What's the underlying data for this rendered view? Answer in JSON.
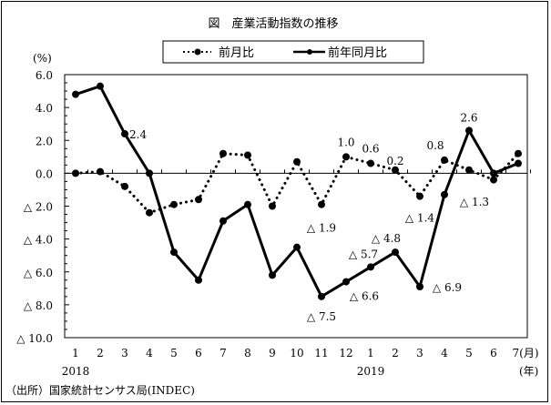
{
  "chart_data": {
    "type": "line",
    "title": "図　産業活動指数の推移",
    "ylabel": "(%)",
    "xlabel": "(年)",
    "x_unit": "(月)",
    "ylim": [
      -10,
      6
    ],
    "y_ticks": [
      6,
      4,
      2,
      0,
      -2,
      -4,
      -6,
      -8,
      -10
    ],
    "y_tick_labels": [
      "6.0",
      "4.0",
      "2.0",
      "0.0",
      "△ 2.0",
      "△ 4.0",
      "△ 6.0",
      "△ 8.0",
      "△ 10.0"
    ],
    "categories": [
      "1",
      "2",
      "3",
      "4",
      "5",
      "6",
      "7",
      "8",
      "9",
      "10",
      "11",
      "12",
      "1",
      "2",
      "3",
      "4",
      "5",
      "6",
      "7(月)"
    ],
    "years": [
      {
        "label": "2018",
        "index": 0
      },
      {
        "label": "2019",
        "index": 12
      }
    ],
    "grid": false,
    "legend_position": "top",
    "series": [
      {
        "name": "前月比",
        "style": "dotted",
        "values": [
          0.0,
          0.1,
          -0.8,
          -2.4,
          -1.9,
          -1.6,
          1.2,
          1.1,
          -2.0,
          0.7,
          -1.9,
          1.0,
          0.6,
          0.2,
          -1.4,
          0.8,
          0.2,
          -0.4,
          1.2
        ]
      },
      {
        "name": "前年同月比",
        "style": "solid",
        "values": [
          4.8,
          5.3,
          2.4,
          0.0,
          -4.8,
          -6.5,
          -2.9,
          -1.9,
          -6.2,
          -4.5,
          -7.5,
          -6.6,
          -5.7,
          -4.8,
          -6.9,
          -1.3,
          2.6,
          0.0,
          0.6
        ]
      }
    ],
    "annotations": [
      {
        "series": 1,
        "index": 2,
        "text": "2.4"
      },
      {
        "series": 0,
        "index": 10,
        "text": "△ 1.9"
      },
      {
        "series": 0,
        "index": 11,
        "text": "1.0"
      },
      {
        "series": 0,
        "index": 12,
        "text": "0.6"
      },
      {
        "series": 0,
        "index": 13,
        "text": "0.2"
      },
      {
        "series": 0,
        "index": 14,
        "text": "△ 1.4"
      },
      {
        "series": 0,
        "index": 15,
        "text": "0.8"
      },
      {
        "series": 1,
        "index": 15,
        "text": "△ 1.3"
      },
      {
        "series": 1,
        "index": 16,
        "text": "2.6"
      },
      {
        "series": 1,
        "index": 10,
        "text": "△ 7.5"
      },
      {
        "series": 1,
        "index": 11,
        "text": "△ 6.6"
      },
      {
        "series": 1,
        "index": 12,
        "text": "△ 5.7"
      },
      {
        "series": 1,
        "index": 13,
        "text": "△ 4.8"
      },
      {
        "series": 1,
        "index": 14,
        "text": "△ 6.9"
      }
    ],
    "source": "（出所）国家統計センサス局(INDEC)"
  },
  "colors": {
    "line": "#000000",
    "background": "#ffffff"
  }
}
